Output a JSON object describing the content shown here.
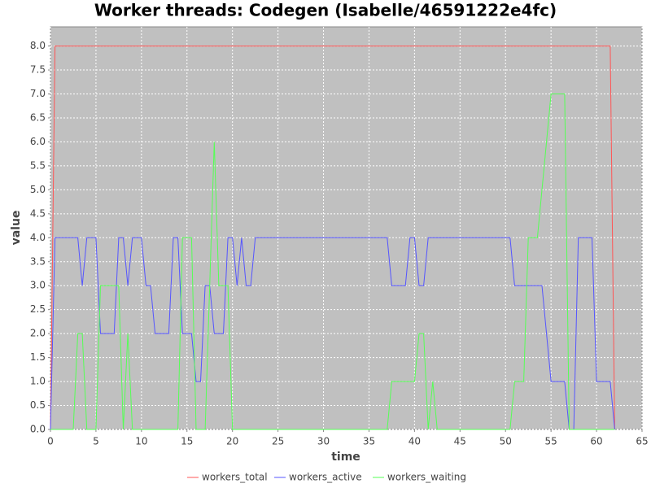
{
  "chart_data": {
    "type": "line",
    "title": "Worker threads: Codegen (Isabelle/46591222e4fc)",
    "x_label": "time",
    "y_label": "value",
    "x": [
      0,
      0.5,
      1,
      1.5,
      2,
      2.5,
      3,
      3.5,
      4,
      4.5,
      5,
      5.5,
      6,
      6.5,
      7,
      7.5,
      8,
      8.5,
      9,
      9.5,
      10,
      10.5,
      11,
      11.5,
      12,
      12.5,
      13,
      13.5,
      14,
      14.5,
      15,
      15.5,
      16,
      16.5,
      17,
      17.5,
      18,
      18.5,
      19,
      19.5,
      20,
      20.5,
      21,
      21.5,
      22,
      22.5,
      23,
      23.5,
      24,
      24.5,
      25,
      25.5,
      26,
      26.5,
      27,
      27.5,
      28,
      28.5,
      29,
      29.5,
      30,
      30.5,
      31,
      31.5,
      32,
      32.5,
      33,
      33.5,
      34,
      34.5,
      35,
      35.5,
      36,
      36.5,
      37,
      37.5,
      38,
      38.5,
      39,
      39.5,
      40,
      40.5,
      41,
      41.5,
      42,
      42.5,
      43,
      43.5,
      44,
      44.5,
      45,
      45.5,
      46,
      46.5,
      47,
      47.5,
      48,
      48.5,
      49,
      49.5,
      50,
      50.5,
      51,
      51.5,
      52,
      52.5,
      53,
      53.5,
      54,
      54.5,
      55,
      55.5,
      56,
      56.5,
      57,
      57.5,
      58,
      58.5,
      59,
      59.5,
      60,
      60.5,
      61,
      61.5,
      62
    ],
    "series": [
      {
        "name": "workers_total",
        "color": "#ff5555",
        "values": [
          0,
          8,
          8,
          8,
          8,
          8,
          8,
          8,
          8,
          8,
          8,
          8,
          8,
          8,
          8,
          8,
          8,
          8,
          8,
          8,
          8,
          8,
          8,
          8,
          8,
          8,
          8,
          8,
          8,
          8,
          8,
          8,
          8,
          8,
          8,
          8,
          8,
          8,
          8,
          8,
          8,
          8,
          8,
          8,
          8,
          8,
          8,
          8,
          8,
          8,
          8,
          8,
          8,
          8,
          8,
          8,
          8,
          8,
          8,
          8,
          8,
          8,
          8,
          8,
          8,
          8,
          8,
          8,
          8,
          8,
          8,
          8,
          8,
          8,
          8,
          8,
          8,
          8,
          8,
          8,
          8,
          8,
          8,
          8,
          8,
          8,
          8,
          8,
          8,
          8,
          8,
          8,
          8,
          8,
          8,
          8,
          8,
          8,
          8,
          8,
          8,
          8,
          8,
          8,
          8,
          8,
          8,
          8,
          8,
          8,
          8,
          8,
          8,
          8,
          8,
          8,
          8,
          8,
          8,
          8,
          8,
          8,
          8,
          8,
          0
        ]
      },
      {
        "name": "workers_active",
        "color": "#5555ff",
        "values": [
          0,
          4,
          4,
          4,
          4,
          4,
          4,
          3,
          4,
          4,
          4,
          2,
          2,
          2,
          2,
          4,
          4,
          3,
          4,
          4,
          4,
          3,
          3,
          2,
          2,
          2,
          2,
          4,
          4,
          2,
          2,
          2,
          1,
          1,
          3,
          3,
          2,
          2,
          2,
          4,
          4,
          3,
          4,
          3,
          3,
          4,
          4,
          4,
          4,
          4,
          4,
          4,
          4,
          4,
          4,
          4,
          4,
          4,
          4,
          4,
          4,
          4,
          4,
          4,
          4,
          4,
          4,
          4,
          4,
          4,
          4,
          4,
          4,
          4,
          4,
          3,
          3,
          3,
          3,
          4,
          4,
          3,
          3,
          4,
          4,
          4,
          4,
          4,
          4,
          4,
          4,
          4,
          4,
          4,
          4,
          4,
          4,
          4,
          4,
          4,
          4,
          4,
          3,
          3,
          3,
          3,
          3,
          3,
          3,
          2,
          1,
          1,
          1,
          1,
          0,
          0,
          4,
          4,
          4,
          4,
          1,
          1,
          1,
          1,
          0
        ]
      },
      {
        "name": "workers_waiting",
        "color": "#55ff55",
        "values": [
          0,
          0,
          0,
          0,
          0,
          0,
          2,
          2,
          0,
          0,
          0,
          3,
          3,
          3,
          3,
          3,
          0,
          2,
          0,
          0,
          0,
          0,
          0,
          0,
          0,
          0,
          0,
          0,
          0,
          4,
          4,
          4,
          0,
          0,
          0,
          3,
          6,
          3,
          3,
          3,
          0,
          0,
          0,
          0,
          0,
          0,
          0,
          0,
          0,
          0,
          0,
          0,
          0,
          0,
          0,
          0,
          0,
          0,
          0,
          0,
          0,
          0,
          0,
          0,
          0,
          0,
          0,
          0,
          0,
          0,
          0,
          0,
          0,
          0,
          0,
          1,
          1,
          1,
          1,
          1,
          1,
          2,
          2,
          0,
          1,
          0,
          0,
          0,
          0,
          0,
          0,
          0,
          0,
          0,
          0,
          0,
          0,
          0,
          0,
          0,
          0,
          0,
          1,
          1,
          1,
          4,
          4,
          4,
          5,
          6,
          7,
          7,
          7,
          7,
          0,
          0,
          0,
          0,
          0,
          0,
          0,
          0,
          0,
          0,
          0
        ]
      }
    ],
    "xlim": [
      0,
      65
    ],
    "xticks": [
      0,
      5,
      10,
      15,
      20,
      25,
      30,
      35,
      40,
      45,
      50,
      55,
      60,
      65
    ],
    "ylim": [
      0,
      8.4
    ],
    "yticks": [
      {
        "value": 0,
        "label": "0.0"
      },
      0.5,
      {
        "value": 1,
        "label": "1.0"
      },
      1.5,
      {
        "value": 2,
        "label": "2.0"
      },
      2.5,
      {
        "value": 3,
        "label": "3.0"
      },
      3.5,
      {
        "value": 4,
        "label": "4.0"
      },
      4.5,
      {
        "value": 5,
        "label": "5.0"
      },
      5.5,
      {
        "value": 6,
        "label": "6.0"
      },
      6.5,
      {
        "value": 7,
        "label": "7.0"
      },
      7.5,
      {
        "value": 8,
        "label": "8.0"
      }
    ],
    "grid": true,
    "legend": "bottom"
  }
}
